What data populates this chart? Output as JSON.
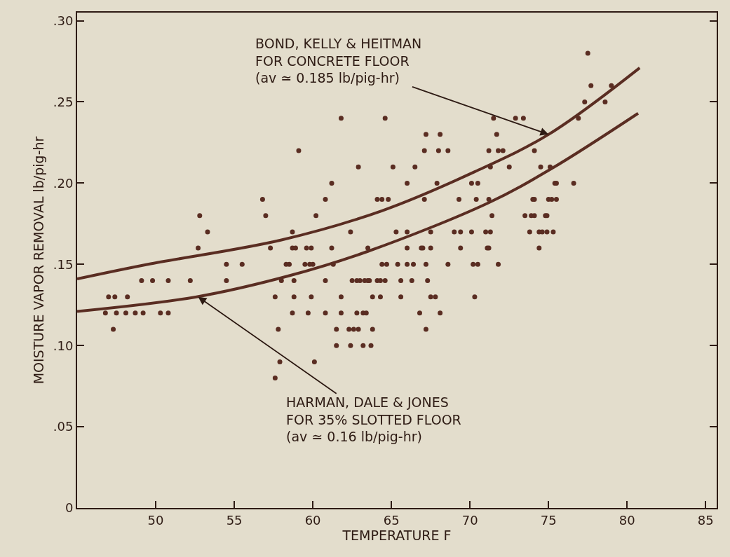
{
  "chart_data": {
    "type": "scatter",
    "xlabel": "TEMPERATURE F",
    "ylabel": "MOISTURE VAPOR REMOVAL lb/pig-hr",
    "xlim": [
      45,
      85.7
    ],
    "ylim": [
      0,
      0.305
    ],
    "xticks": [
      50,
      55,
      60,
      65,
      70,
      75,
      80,
      85
    ],
    "yticks": [
      0,
      {
        "value": 0.05,
        "label": ".05"
      },
      {
        "value": 0.1,
        "label": ".10"
      },
      {
        "value": 0.15,
        "label": ".15"
      },
      {
        "value": 0.2,
        "label": ".20"
      },
      {
        "value": 0.25,
        "label": ".25"
      },
      {
        "value": 0.3,
        "label": ".30"
      }
    ],
    "series": [
      {
        "type": "line",
        "color": "#5a2d22",
        "marker": "none",
        "line_style": "solid",
        "x": [
          45.0,
          49.5,
          58.0,
          64.4,
          70.3,
          75.0,
          80.8
        ],
        "values": [
          0.141,
          0.15,
          0.165,
          0.183,
          0.207,
          0.23,
          0.271
        ]
      },
      {
        "type": "line",
        "color": "#5a2d22",
        "marker": "none",
        "line_style": "solid",
        "x": [
          45.0,
          52.6,
          58.5,
          63.5,
          71.2,
          75.2,
          80.7
        ],
        "values": [
          0.121,
          0.13,
          0.143,
          0.158,
          0.188,
          0.209,
          0.243
        ]
      },
      {
        "color": "#5a2d22",
        "marker": "circle",
        "x": [
          77.5,
          77.7,
          79.0,
          77.3,
          78.6,
          61.8,
          64.6,
          71.5,
          72.9,
          73.4,
          76.9,
          67.2,
          68.1,
          71.7,
          59.1,
          67.1,
          68.0,
          68.6,
          71.2,
          71.8,
          72.1,
          74.1,
          62.9,
          65.1,
          66.5,
          71.3,
          72.5,
          74.5,
          75.1,
          61.2,
          66.0,
          67.9,
          70.1,
          70.5,
          75.4,
          75.5,
          76.6,
          56.8,
          60.8,
          64.1,
          64.4,
          64.8,
          67.1,
          69.3,
          70.4,
          71.2,
          74.0,
          74.1,
          75.0,
          75.2,
          75.5,
          52.8,
          57.0,
          60.2,
          71.4,
          73.5,
          73.9,
          74.1,
          74.8,
          74.9,
          53.3,
          58.7,
          62.4,
          65.3,
          66.0,
          67.5,
          69.0,
          69.4,
          70.1,
          71.0,
          71.3,
          73.8,
          74.4,
          74.6,
          74.9,
          75.3,
          52.7,
          57.3,
          58.7,
          58.9,
          59.6,
          59.9,
          61.2,
          63.5,
          66.0,
          66.9,
          67.0,
          67.5,
          69.4,
          71.1,
          71.2,
          74.4,
          54.5,
          55.5,
          58.3,
          58.5,
          59.5,
          59.8,
          60.0,
          61.3,
          64.4,
          64.7,
          65.4,
          66.0,
          66.4,
          67.2,
          68.6,
          70.2,
          70.5,
          71.8,
          49.1,
          49.8,
          50.8,
          52.2,
          54.5,
          58.0,
          58.8,
          60.8,
          62.5,
          62.8,
          63.0,
          63.3,
          63.5,
          63.6,
          64.1,
          64.3,
          64.6,
          65.6,
          66.3,
          67.3,
          47.0,
          47.4,
          48.2,
          57.6,
          58.8,
          59.9,
          61.8,
          63.8,
          64.3,
          65.6,
          67.5,
          67.8,
          70.3,
          46.8,
          47.5,
          48.1,
          48.7,
          49.2,
          50.3,
          50.8,
          58.7,
          59.7,
          60.8,
          61.8,
          62.8,
          63.2,
          63.4,
          66.8,
          68.1,
          47.3,
          57.8,
          61.5,
          62.3,
          62.6,
          62.9,
          63.8,
          67.2,
          61.5,
          62.4,
          63.2,
          63.7,
          57.9,
          60.1,
          57.6
        ],
        "values": [
          0.28,
          0.26,
          0.26,
          0.25,
          0.25,
          0.24,
          0.24,
          0.24,
          0.24,
          0.24,
          0.24,
          0.23,
          0.23,
          0.23,
          0.22,
          0.22,
          0.22,
          0.22,
          0.22,
          0.22,
          0.22,
          0.22,
          0.21,
          0.21,
          0.21,
          0.21,
          0.21,
          0.21,
          0.21,
          0.2,
          0.2,
          0.2,
          0.2,
          0.2,
          0.2,
          0.2,
          0.2,
          0.19,
          0.19,
          0.19,
          0.19,
          0.19,
          0.19,
          0.19,
          0.19,
          0.19,
          0.19,
          0.19,
          0.19,
          0.19,
          0.19,
          0.18,
          0.18,
          0.18,
          0.18,
          0.18,
          0.18,
          0.18,
          0.18,
          0.18,
          0.17,
          0.17,
          0.17,
          0.17,
          0.17,
          0.17,
          0.17,
          0.17,
          0.17,
          0.17,
          0.17,
          0.17,
          0.17,
          0.17,
          0.17,
          0.17,
          0.16,
          0.16,
          0.16,
          0.16,
          0.16,
          0.16,
          0.16,
          0.16,
          0.16,
          0.16,
          0.16,
          0.16,
          0.16,
          0.16,
          0.16,
          0.16,
          0.15,
          0.15,
          0.15,
          0.15,
          0.15,
          0.15,
          0.15,
          0.15,
          0.15,
          0.15,
          0.15,
          0.15,
          0.15,
          0.15,
          0.15,
          0.15,
          0.15,
          0.15,
          0.14,
          0.14,
          0.14,
          0.14,
          0.14,
          0.14,
          0.14,
          0.14,
          0.14,
          0.14,
          0.14,
          0.14,
          0.14,
          0.14,
          0.14,
          0.14,
          0.14,
          0.14,
          0.14,
          0.14,
          0.13,
          0.13,
          0.13,
          0.13,
          0.13,
          0.13,
          0.13,
          0.13,
          0.13,
          0.13,
          0.13,
          0.13,
          0.13,
          0.12,
          0.12,
          0.12,
          0.12,
          0.12,
          0.12,
          0.12,
          0.12,
          0.12,
          0.12,
          0.12,
          0.12,
          0.12,
          0.12,
          0.12,
          0.12,
          0.11,
          0.11,
          0.11,
          0.11,
          0.11,
          0.11,
          0.11,
          0.11,
          0.1,
          0.1,
          0.1,
          0.1,
          0.09,
          0.09,
          0.08
        ]
      }
    ],
    "annotations": [
      {
        "text": "BOND, KELLY & HEITMAN\nFOR CONCRETE FLOOR\n(av ≃ 0.185 lb/pig-hr)",
        "x": 75.0,
        "y": 0.23
      },
      {
        "text": "HARMAN, DALE & JONES\nFOR 35% SLOTTED FLOOR\n(av ≃ 0.16 lb/pig-hr)",
        "x": 52.7,
        "y": 0.13
      }
    ]
  }
}
